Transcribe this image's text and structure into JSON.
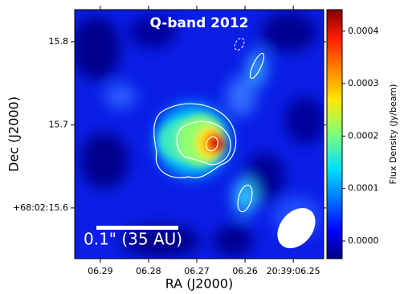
{
  "chart_data": {
    "type": "image",
    "title": "Q-band 2012",
    "xlabel": "RA (J2000)",
    "ylabel": "Dec (J2000)",
    "colorbar_label": "Flux Density (Jy/beam)",
    "scale_bar_label": "0.1\" (35 AU)",
    "xlim": [
      6.2953,
      6.2437
    ],
    "xticks": [
      {
        "value": 6.29,
        "label": "06.29"
      },
      {
        "value": 6.28,
        "label": "06.28"
      },
      {
        "value": 6.27,
        "label": "06.27"
      },
      {
        "value": 6.26,
        "label": "06.26"
      },
      {
        "value": 6.25,
        "label": "20:39:06.25"
      }
    ],
    "ylim": [
      15.539,
      15.8386
    ],
    "yticks": [
      15.8,
      15.7,
      {
        "value": 15.6,
        "label": "+68:02:15.6"
      }
    ],
    "clim": [
      -3.37e-05,
      0.000441
    ],
    "cticks": [
      {
        "value": 0,
        "label": "0.0000"
      },
      {
        "value": 0.0001,
        "label": "0.0001"
      },
      {
        "value": 0.0002,
        "label": "0.0002"
      },
      {
        "value": 0.0003,
        "label": "0.0003"
      },
      {
        "value": 0.0004,
        "label": "0.0004"
      }
    ]
  }
}
